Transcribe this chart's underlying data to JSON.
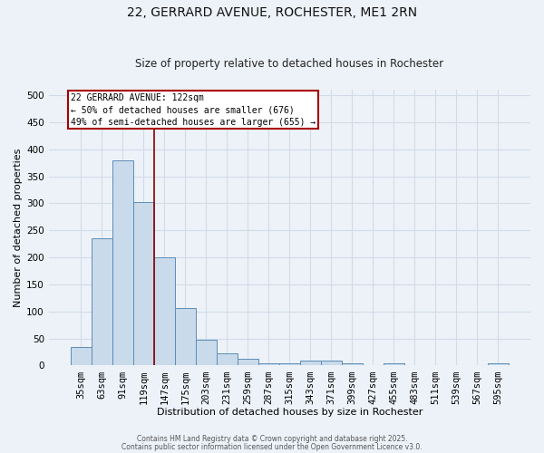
{
  "title": "22, GERRARD AVENUE, ROCHESTER, ME1 2RN",
  "subtitle": "Size of property relative to detached houses in Rochester",
  "xlabel": "Distribution of detached houses by size in Rochester",
  "ylabel": "Number of detached properties",
  "categories": [
    "35sqm",
    "63sqm",
    "91sqm",
    "119sqm",
    "147sqm",
    "175sqm",
    "203sqm",
    "231sqm",
    "259sqm",
    "287sqm",
    "315sqm",
    "343sqm",
    "371sqm",
    "399sqm",
    "427sqm",
    "455sqm",
    "483sqm",
    "511sqm",
    "539sqm",
    "567sqm",
    "595sqm"
  ],
  "values": [
    35,
    235,
    380,
    302,
    200,
    107,
    48,
    22,
    13,
    4,
    4,
    9,
    9,
    4,
    0,
    4,
    0,
    0,
    0,
    0,
    4
  ],
  "bar_color": "#c9daea",
  "bar_edge_color": "#5b8db8",
  "vline_color": "#8b0000",
  "annotation_text": "22 GERRARD AVENUE: 122sqm\n← 50% of detached houses are smaller (676)\n49% of semi-detached houses are larger (655) →",
  "annotation_box_color": "#ffffff",
  "annotation_box_edge": "#aa0000",
  "annotation_fontsize": 7.0,
  "ylim": [
    0,
    510
  ],
  "yticks": [
    0,
    50,
    100,
    150,
    200,
    250,
    300,
    350,
    400,
    450,
    500
  ],
  "background_color": "#edf2f8",
  "grid_color": "#d0dce8",
  "footer_line1": "Contains HM Land Registry data © Crown copyright and database right 2025.",
  "footer_line2": "Contains public sector information licensed under the Open Government Licence v3.0."
}
